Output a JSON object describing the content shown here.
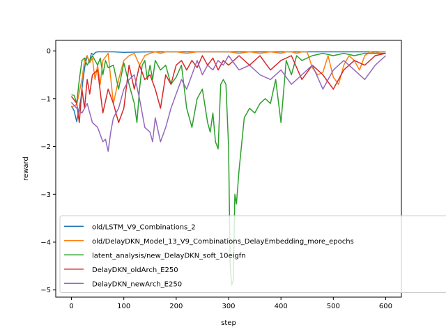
{
  "chart_data": {
    "type": "line",
    "title": "",
    "xlabel": "step",
    "ylabel": "reward",
    "xlim": [
      -30,
      630
    ],
    "ylim": [
      -5.15,
      0.22
    ],
    "xticks": [
      0,
      100,
      200,
      300,
      400,
      500,
      600
    ],
    "yticks": [
      0,
      -1,
      -2,
      -3,
      -4,
      -5
    ],
    "xtick_labels": [
      "0",
      "100",
      "200",
      "300",
      "400",
      "500",
      "600"
    ],
    "ytick_labels": [
      "0",
      "−1",
      "−2",
      "−3",
      "−4",
      "−5"
    ],
    "grid": false,
    "legend_position": "lower-left",
    "series": [
      {
        "name": "old/LSTM_V9_Combinations_2",
        "color": "#1f77b4",
        "x": [
          0,
          5,
          10,
          13,
          18,
          22,
          26,
          30,
          34,
          38,
          42,
          46,
          50,
          60,
          80,
          100,
          150,
          200,
          250,
          300,
          350,
          400,
          450,
          500,
          550,
          600
        ],
        "y": [
          -1.15,
          -1.25,
          -1.48,
          -1.3,
          -1.0,
          -0.6,
          -0.3,
          -0.1,
          -0.25,
          -0.05,
          -0.08,
          -0.03,
          -0.02,
          -0.02,
          -0.02,
          -0.03,
          -0.02,
          -0.02,
          -0.02,
          -0.02,
          -0.02,
          -0.02,
          -0.02,
          -0.02,
          -0.02,
          -0.02
        ]
      },
      {
        "name": "old/DelayDKN_Model_13_V9_Combinations_DelayEmbedding_more_epochs",
        "color": "#ff7f0e",
        "x": [
          0,
          10,
          20,
          25,
          30,
          35,
          40,
          45,
          50,
          55,
          60,
          70,
          80,
          90,
          100,
          110,
          120,
          130,
          140,
          150,
          160,
          170,
          180,
          190,
          200,
          220,
          240,
          260,
          280,
          300,
          320,
          340,
          360,
          380,
          400,
          410,
          420,
          430,
          440,
          450,
          460,
          470,
          480,
          490,
          500,
          510,
          520,
          530,
          540,
          550,
          560,
          570,
          580,
          590,
          600
        ],
        "y": [
          -1.18,
          -1.12,
          -0.6,
          -0.2,
          -0.1,
          -0.25,
          -0.15,
          -0.6,
          -0.3,
          -0.7,
          -0.2,
          -0.05,
          -1.1,
          -0.6,
          -0.2,
          -0.1,
          -0.05,
          -0.3,
          -0.1,
          -0.05,
          -0.02,
          -0.05,
          -0.02,
          -0.02,
          -0.02,
          -0.05,
          -0.02,
          -0.02,
          -0.02,
          -0.02,
          -0.05,
          -0.02,
          -0.05,
          -0.02,
          -0.05,
          -0.02,
          -0.02,
          -0.05,
          -0.02,
          -0.02,
          -0.35,
          -0.5,
          -0.45,
          -0.1,
          -0.55,
          -0.7,
          -0.3,
          -0.1,
          -0.2,
          -0.4,
          -0.1,
          -0.02,
          -0.05,
          -0.02,
          -0.02
        ]
      },
      {
        "name": "latent_analysis/new_DelayDKN_soft_10eigfn",
        "color": "#2ca02c",
        "x": [
          0,
          5,
          10,
          15,
          20,
          25,
          30,
          35,
          40,
          45,
          50,
          55,
          60,
          65,
          70,
          80,
          90,
          100,
          110,
          120,
          125,
          130,
          135,
          140,
          145,
          150,
          155,
          160,
          170,
          180,
          190,
          200,
          210,
          220,
          230,
          240,
          250,
          260,
          265,
          270,
          275,
          280,
          285,
          290,
          295,
          300,
          303,
          306,
          309,
          312,
          315,
          320,
          330,
          340,
          350,
          360,
          370,
          380,
          390,
          400,
          410,
          420,
          430,
          440,
          460,
          480,
          500,
          520,
          540,
          560,
          580,
          600
        ],
        "y": [
          -0.92,
          -0.93,
          -1.1,
          -0.6,
          -0.2,
          -0.15,
          -0.3,
          -0.2,
          -0.1,
          -0.2,
          -0.3,
          -0.15,
          -0.5,
          -0.2,
          -0.35,
          -0.3,
          -0.8,
          -0.25,
          -0.7,
          -1.1,
          -1.5,
          -0.8,
          -0.3,
          -0.2,
          -0.6,
          -0.3,
          -0.6,
          -0.2,
          -0.4,
          -0.3,
          -0.7,
          -0.55,
          -0.3,
          -1.2,
          -1.6,
          -1.0,
          -0.8,
          -1.5,
          -1.7,
          -1.3,
          -1.9,
          -2.05,
          -0.7,
          -0.6,
          -0.7,
          -2.0,
          -4.5,
          -4.9,
          -4.8,
          -3.0,
          -3.2,
          -2.5,
          -1.4,
          -1.2,
          -1.3,
          -1.1,
          -1.0,
          -1.1,
          -0.6,
          -1.5,
          -0.2,
          -0.5,
          -0.1,
          -0.2,
          -0.1,
          -0.05,
          -0.1,
          -0.05,
          -0.1,
          -0.05,
          -0.05,
          -0.05
        ]
      },
      {
        "name": "DelayDKN_oldArch_E250",
        "color": "#d62728",
        "x": [
          0,
          10,
          15,
          20,
          25,
          30,
          35,
          40,
          50,
          60,
          70,
          80,
          90,
          100,
          110,
          120,
          130,
          140,
          150,
          160,
          170,
          180,
          190,
          200,
          210,
          220,
          230,
          240,
          250,
          260,
          270,
          280,
          290,
          300,
          320,
          340,
          360,
          380,
          400,
          420,
          440,
          460,
          480,
          500,
          520,
          540,
          560,
          580,
          600
        ],
        "y": [
          -0.95,
          -1.1,
          -1.5,
          -0.8,
          -1.2,
          -0.6,
          -0.9,
          -0.5,
          -0.4,
          -1.3,
          -0.8,
          -1.1,
          -1.5,
          -1.2,
          -0.3,
          -0.8,
          -0.3,
          -0.6,
          -0.5,
          -0.8,
          -1.2,
          -0.5,
          -0.7,
          -0.3,
          -0.2,
          -0.4,
          -0.2,
          -0.35,
          -0.1,
          -0.3,
          -0.15,
          -0.4,
          -0.2,
          -0.3,
          -0.1,
          -0.3,
          -0.1,
          -0.4,
          -0.2,
          -0.1,
          -0.6,
          -0.3,
          -0.5,
          -0.8,
          -0.4,
          -0.2,
          -0.3,
          -0.1,
          -0.05
        ]
      },
      {
        "name": "DelayDKN_newArch_E250",
        "color": "#9467bd",
        "x": [
          0,
          10,
          20,
          30,
          40,
          50,
          60,
          65,
          70,
          75,
          80,
          90,
          100,
          110,
          120,
          130,
          140,
          150,
          155,
          160,
          170,
          180,
          190,
          200,
          210,
          220,
          230,
          240,
          250,
          260,
          270,
          280,
          290,
          300,
          320,
          340,
          360,
          380,
          400,
          420,
          440,
          460,
          480,
          500,
          520,
          540,
          560,
          580,
          600
        ],
        "y": [
          -1.08,
          -1.2,
          -1.3,
          -1.1,
          -1.5,
          -1.6,
          -1.9,
          -1.85,
          -2.1,
          -1.7,
          -1.4,
          -1.2,
          -0.8,
          -0.6,
          -0.5,
          -1.0,
          -1.6,
          -1.7,
          -1.9,
          -1.4,
          -1.9,
          -1.6,
          -1.2,
          -0.9,
          -0.6,
          -0.8,
          -0.5,
          -0.2,
          -0.5,
          -0.3,
          -0.4,
          -0.2,
          -0.3,
          -0.1,
          -0.4,
          -0.3,
          -0.5,
          -0.6,
          -0.4,
          -0.7,
          -0.5,
          -0.3,
          -0.8,
          -0.4,
          -0.2,
          -0.4,
          -0.6,
          -0.3,
          -0.1
        ]
      }
    ]
  }
}
